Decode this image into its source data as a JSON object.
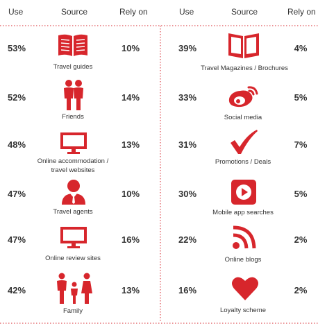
{
  "chart_data": {
    "type": "table",
    "headers": {
      "left": {
        "use": "Use",
        "source": "Source",
        "rely": "Rely on"
      },
      "right": {
        "use": "Use",
        "source": "Source",
        "rely": "Rely on"
      }
    },
    "rows": [
      {
        "source": "Travel guides",
        "use": "53%",
        "rely": "10%",
        "icon": "open-book-icon"
      },
      {
        "source": "Friends",
        "use": "52%",
        "rely": "14%",
        "icon": "friends-icon"
      },
      {
        "source": "Online accommodation / travel websites",
        "source_line1": "Online accommodation /",
        "source_line2": "travel websites",
        "use": "48%",
        "rely": "13%",
        "icon": "monitor-icon"
      },
      {
        "source": "Travel agents",
        "use": "47%",
        "rely": "10%",
        "icon": "agent-icon"
      },
      {
        "source": "Online review sites",
        "use": "47%",
        "rely": "16%",
        "icon": "monitor-icon"
      },
      {
        "source": "Family",
        "use": "42%",
        "rely": "13%",
        "icon": "family-icon"
      },
      {
        "source": "Travel Magazines / Brochures",
        "use": "39%",
        "rely": "4%",
        "icon": "magazine-icon"
      },
      {
        "source": "Social media",
        "use": "33%",
        "rely": "5%",
        "icon": "weibo-icon"
      },
      {
        "source": "Promotions / Deals",
        "use": "31%",
        "rely": "7%",
        "icon": "checkmark-icon"
      },
      {
        "source": "Mobile app searches",
        "use": "30%",
        "rely": "5%",
        "icon": "play-button-icon"
      },
      {
        "source": "Online blogs",
        "use": "22%",
        "rely": "2%",
        "icon": "rss-icon"
      },
      {
        "source": "Loyalty scheme",
        "use": "16%",
        "rely": "2%",
        "icon": "heart-icon"
      }
    ],
    "colors": {
      "accent": "#d7262c",
      "text": "#333333"
    }
  }
}
